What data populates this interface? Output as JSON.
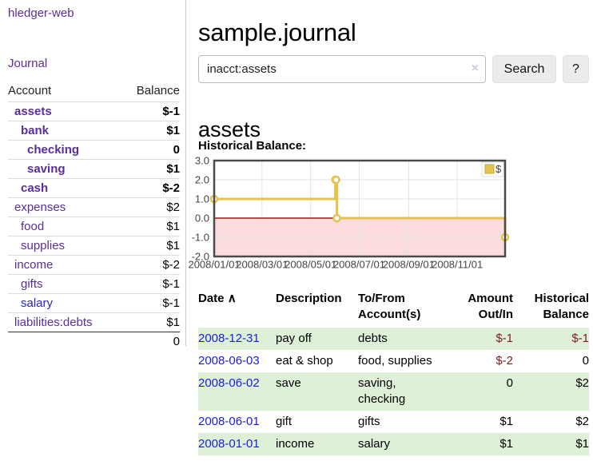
{
  "colors": {
    "link_visited_purple": "#5a2d9e",
    "link_blue": "#1a1ae8",
    "negative_red": "#7f1d23",
    "negative_muted_red": "#c07e82",
    "row_stripe_green": "#dff0d8",
    "chart_line_gold": "#e4c44f",
    "chart_negative_region_pink": "#fcdcdc",
    "chart_zero_line_red": "#9c1717"
  },
  "sidebar": {
    "app_title": "hledger-web",
    "journal_link": "Journal",
    "accounts_table": {
      "headers": {
        "account": "Account",
        "balance": "Balance"
      },
      "rows": [
        {
          "name": "assets",
          "balance": "$-1",
          "indent": 1,
          "bold": true,
          "balance_style": "negative"
        },
        {
          "name": "bank",
          "balance": "$1",
          "indent": 2,
          "bold": true,
          "balance_style": "normal"
        },
        {
          "name": "checking",
          "balance": "0",
          "indent": 3,
          "bold": true,
          "balance_style": "normal"
        },
        {
          "name": "saving",
          "balance": "$1",
          "indent": 3,
          "bold": true,
          "balance_style": "normal"
        },
        {
          "name": "cash",
          "balance": "$-2",
          "indent": 2,
          "bold": true,
          "balance_style": "negative"
        },
        {
          "name": "expenses",
          "balance": "$2",
          "indent": 1,
          "bold": false,
          "balance_style": "normal"
        },
        {
          "name": "food",
          "balance": "$1",
          "indent": 2,
          "bold": false,
          "balance_style": "normal"
        },
        {
          "name": "supplies",
          "balance": "$1",
          "indent": 2,
          "bold": false,
          "balance_style": "normal"
        },
        {
          "name": "income",
          "balance": "$-2",
          "indent": 1,
          "bold": false,
          "balance_style": "negative-muted"
        },
        {
          "name": "gifts",
          "balance": "$-1",
          "indent": 2,
          "bold": false,
          "balance_style": "negative-muted"
        },
        {
          "name": "salary",
          "balance": "$-1",
          "indent": 2,
          "bold": false,
          "balance_style": "negative-muted",
          "link_style": "unvisited"
        },
        {
          "name": "liabilities:debts",
          "balance": "$1",
          "indent": 1,
          "bold": false,
          "balance_style": "normal"
        }
      ],
      "total": "0"
    }
  },
  "main": {
    "title": "sample.journal",
    "search": {
      "value": "inacct:assets",
      "clear_icon": "×",
      "search_button": "Search",
      "help_button": "?"
    },
    "account_heading": "assets",
    "chart_heading": "Historical Balance:"
  },
  "chart_data": {
    "type": "line",
    "step": true,
    "title": "Historical Balance",
    "series": [
      {
        "name": "$",
        "x": [
          "2008-01-01",
          "2008-06-01",
          "2008-06-02",
          "2008-06-03",
          "2008-12-31"
        ],
        "y": [
          1,
          2,
          2,
          0,
          -1
        ]
      }
    ],
    "ylim": [
      -2,
      3
    ],
    "yticks": [
      "3.0",
      "2.0",
      "1.0",
      "0.0",
      "-1.0",
      "-2.0"
    ],
    "xlim": [
      "2008-01-01",
      "2008-12-31"
    ],
    "xtick_dates": [
      "2008-01-01",
      "2008-03-01",
      "2008-05-01",
      "2008-07-01",
      "2008-09-01",
      "2008-11-01"
    ],
    "xtick_labels": [
      "2008/01/01",
      "2008/03/01",
      "2008/05/01",
      "2008/07/01",
      "2008/09/01",
      "2008/11/01"
    ],
    "legend": {
      "label": "$",
      "position": "top-right"
    },
    "grid": true,
    "negative_region_shaded": true
  },
  "transactions_table": {
    "headers": [
      {
        "line1": "Date",
        "line2": "",
        "align": "left",
        "sort_icon": "∧"
      },
      {
        "line1": "Description",
        "line2": "",
        "align": "left"
      },
      {
        "line1": "To/From",
        "line2": "Account(s)",
        "align": "left"
      },
      {
        "line1": "Amount",
        "line2": "Out/In",
        "align": "right"
      },
      {
        "line1": "Historical",
        "line2": "Balance",
        "align": "right"
      }
    ],
    "rows": [
      {
        "date": "2008-12-31",
        "description": "pay off",
        "accounts": [
          "debts"
        ],
        "amount": "$-1",
        "amount_style": "negative",
        "balance": "$-1",
        "balance_style": "negative",
        "stripe": true
      },
      {
        "date": "2008-06-03",
        "description": "eat & shop",
        "accounts": [
          "food, supplies"
        ],
        "amount": "$-2",
        "amount_style": "negative",
        "balance": "0",
        "balance_style": "normal",
        "stripe": false
      },
      {
        "date": "2008-06-02",
        "description": "save",
        "accounts": [
          "saving,",
          "checking"
        ],
        "amount": "0",
        "amount_style": "normal",
        "balance": "$2",
        "balance_style": "normal",
        "stripe": true
      },
      {
        "date": "2008-06-01",
        "description": "gift",
        "accounts": [
          "gifts"
        ],
        "amount": "$1",
        "amount_style": "normal",
        "balance": "$2",
        "balance_style": "normal",
        "stripe": false
      },
      {
        "date": "2008-01-01",
        "description": "income",
        "accounts": [
          "salary"
        ],
        "amount": "$1",
        "amount_style": "normal",
        "balance": "$1",
        "balance_style": "normal",
        "stripe": true
      }
    ]
  }
}
